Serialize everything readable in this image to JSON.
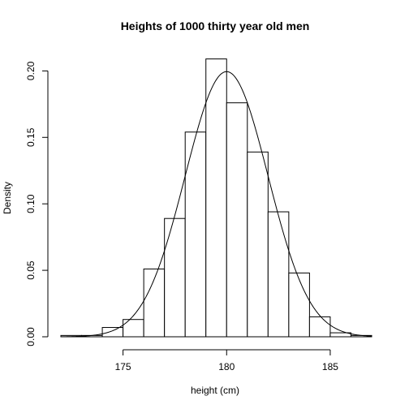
{
  "chart_data": {
    "type": "bar",
    "title": "Heights of 1000 thirty year old men",
    "xlabel": "height (cm)",
    "ylabel": "Density",
    "xlim": [
      172,
      187
    ],
    "ylim": [
      0,
      0.21
    ],
    "bins": [
      {
        "from": 172,
        "to": 173,
        "density": 0.001
      },
      {
        "from": 173,
        "to": 174,
        "density": 0.001
      },
      {
        "from": 174,
        "to": 175,
        "density": 0.007
      },
      {
        "from": 175,
        "to": 176,
        "density": 0.013
      },
      {
        "from": 176,
        "to": 177,
        "density": 0.051
      },
      {
        "from": 177,
        "to": 178,
        "density": 0.089
      },
      {
        "from": 178,
        "to": 179,
        "density": 0.154
      },
      {
        "from": 179,
        "to": 180,
        "density": 0.209
      },
      {
        "from": 180,
        "to": 181,
        "density": 0.176
      },
      {
        "from": 181,
        "to": 182,
        "density": 0.139
      },
      {
        "from": 182,
        "to": 183,
        "density": 0.094
      },
      {
        "from": 183,
        "to": 184,
        "density": 0.048
      },
      {
        "from": 184,
        "to": 185,
        "density": 0.015
      },
      {
        "from": 185,
        "to": 186,
        "density": 0.003
      },
      {
        "from": 186,
        "to": 187,
        "density": 0.001
      }
    ],
    "curve": {
      "type": "normal-density",
      "mean": 180,
      "sd": 2
    },
    "x_ticks": [
      175,
      180,
      185
    ],
    "x_tick_labels": [
      "175",
      "180",
      "185"
    ],
    "y_ticks": [
      0.0,
      0.05,
      0.1,
      0.15,
      0.2
    ],
    "y_tick_labels": [
      "0.00",
      "0.05",
      "0.10",
      "0.15",
      "0.20"
    ],
    "grid": false,
    "legend": "none"
  }
}
